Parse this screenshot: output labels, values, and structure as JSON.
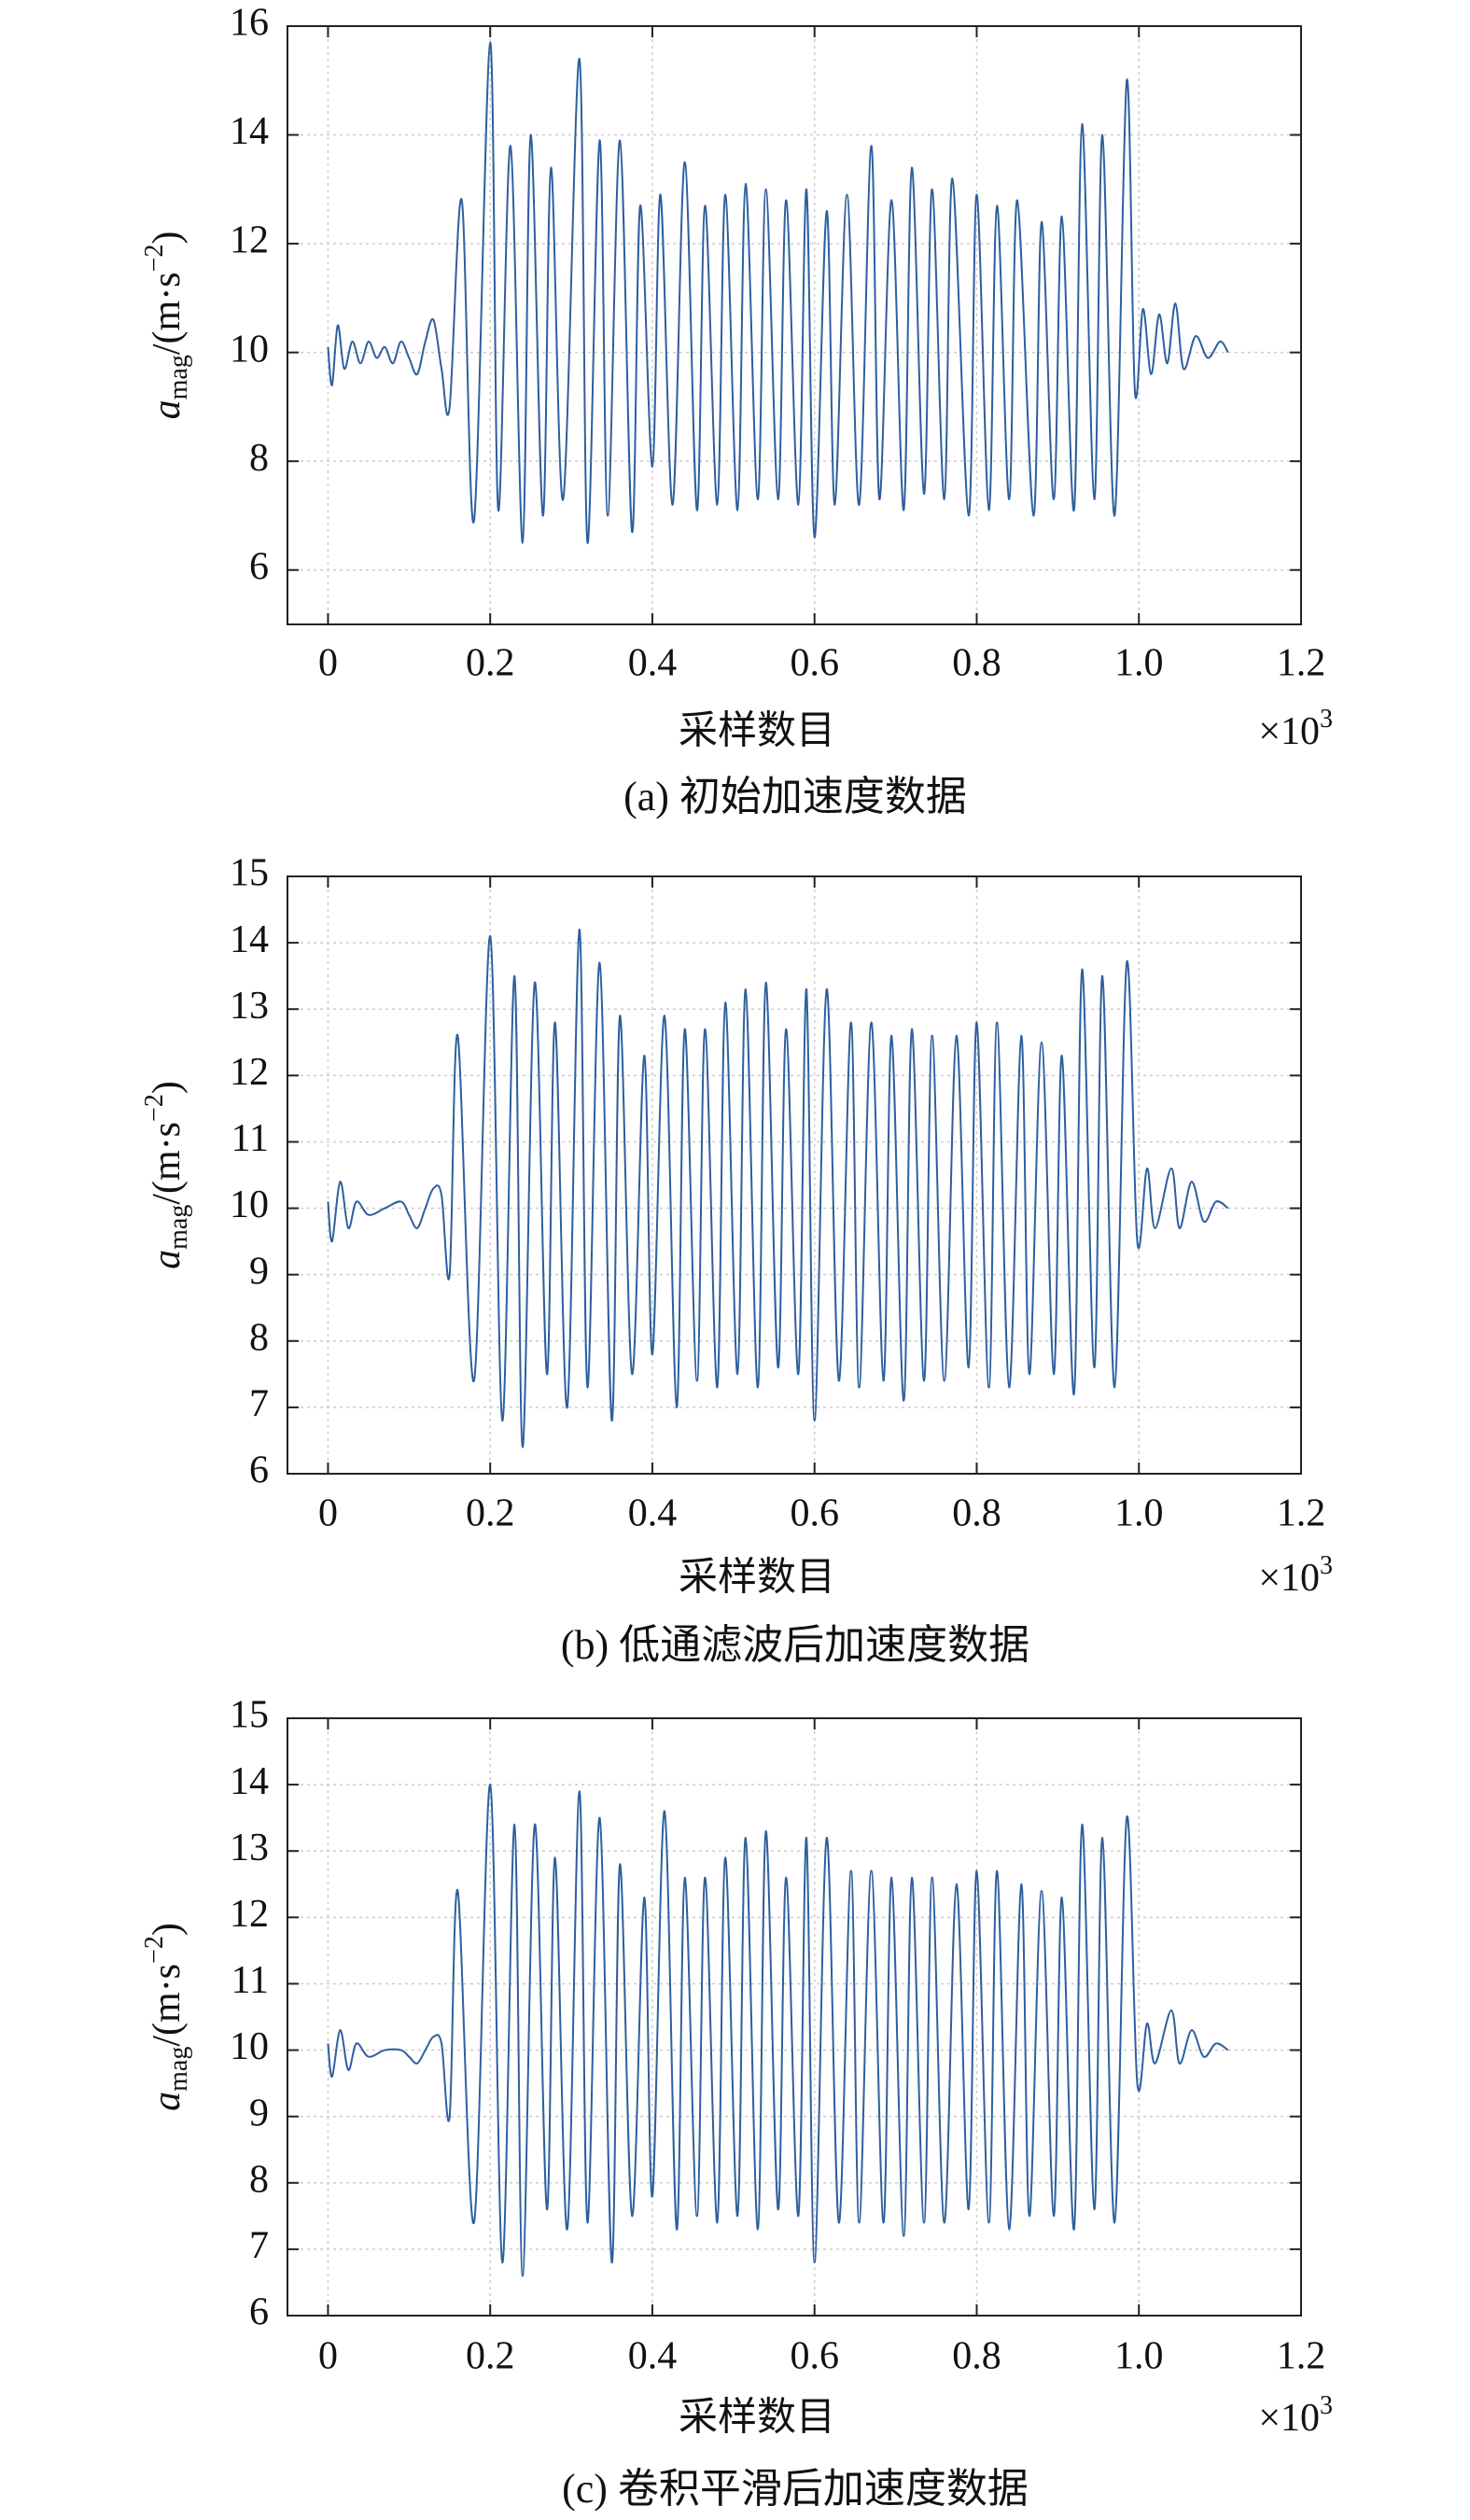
{
  "chart_data": [
    {
      "type": "line",
      "title": "(a) 初始加速度数据",
      "xlabel": "采样数目",
      "x_multiplier": [
        "×10",
        "3"
      ],
      "ylabel": [
        "a",
        "mag",
        "/(m·s",
        "−2",
        ")"
      ],
      "color": "#2e5f9e",
      "grid": true,
      "xlim": [
        -0.05,
        1.2
      ],
      "xticks": [
        0,
        0.2,
        0.4,
        0.6,
        0.8,
        {
          "value": 1,
          "label": "1.0"
        },
        1.2
      ],
      "ylim": [
        5,
        16
      ],
      "yticks": [
        6,
        8,
        10,
        12,
        14,
        16
      ],
      "x": [
        0,
        0.005,
        0.012,
        0.02,
        0.03,
        0.04,
        0.05,
        0.06,
        0.07,
        0.08,
        0.09,
        0.1,
        0.11,
        0.12,
        0.13,
        0.14,
        0.15,
        0.165,
        0.18,
        0.2,
        0.21,
        0.225,
        0.24,
        0.25,
        0.265,
        0.275,
        0.29,
        0.31,
        0.32,
        0.335,
        0.345,
        0.36,
        0.375,
        0.385,
        0.4,
        0.41,
        0.425,
        0.44,
        0.455,
        0.465,
        0.48,
        0.49,
        0.505,
        0.515,
        0.53,
        0.54,
        0.555,
        0.565,
        0.58,
        0.59,
        0.6,
        0.615,
        0.625,
        0.64,
        0.655,
        0.67,
        0.68,
        0.695,
        0.71,
        0.72,
        0.735,
        0.745,
        0.76,
        0.77,
        0.79,
        0.8,
        0.815,
        0.825,
        0.84,
        0.85,
        0.87,
        0.88,
        0.895,
        0.905,
        0.92,
        0.93,
        0.945,
        0.955,
        0.97,
        0.985,
        0.995,
        1.005,
        1.015,
        1.025,
        1.035,
        1.045,
        1.055,
        1.07,
        1.085,
        1.1,
        1.11
      ],
      "values": [
        10.1,
        9.4,
        10.5,
        9.7,
        10.2,
        9.8,
        10.2,
        9.9,
        10.1,
        9.8,
        10.2,
        9.9,
        9.6,
        10.2,
        10.6,
        9.7,
        9.0,
        12.8,
        6.9,
        15.7,
        7.1,
        13.8,
        6.5,
        14.0,
        7.0,
        13.4,
        7.3,
        15.4,
        6.5,
        13.9,
        7.0,
        13.9,
        6.7,
        12.7,
        7.9,
        12.9,
        7.2,
        13.5,
        7.1,
        12.7,
        7.2,
        12.9,
        7.1,
        13.1,
        7.3,
        13.0,
        7.3,
        12.8,
        7.2,
        13.0,
        6.6,
        12.6,
        7.2,
        12.9,
        7.2,
        13.8,
        7.3,
        12.8,
        7.1,
        13.4,
        7.4,
        13.0,
        7.3,
        13.2,
        7.0,
        12.9,
        7.1,
        12.7,
        7.3,
        12.8,
        7.0,
        12.4,
        7.3,
        12.5,
        7.1,
        14.2,
        7.3,
        14.0,
        7.0,
        15.0,
        9.3,
        10.8,
        9.6,
        10.7,
        9.8,
        10.9,
        9.7,
        10.3,
        9.9,
        10.2,
        10.0
      ]
    },
    {
      "type": "line",
      "title": "(b) 低通滤波后加速度数据",
      "xlabel": "采样数目",
      "x_multiplier": [
        "×10",
        "3"
      ],
      "ylabel": [
        "a",
        "mag",
        "/(m·s",
        "−2",
        ")"
      ],
      "color": "#2e5f9e",
      "grid": true,
      "xlim": [
        -0.05,
        1.2
      ],
      "xticks": [
        0,
        0.2,
        0.4,
        0.6,
        0.8,
        {
          "value": 1,
          "label": "1.0"
        },
        1.2
      ],
      "ylim": [
        6,
        15
      ],
      "yticks": [
        6,
        7,
        8,
        9,
        10,
        11,
        12,
        13,
        14,
        15
      ],
      "x": [
        0,
        0.005,
        0.015,
        0.025,
        0.035,
        0.05,
        0.07,
        0.09,
        0.1,
        0.11,
        0.12,
        0.13,
        0.14,
        0.15,
        0.16,
        0.18,
        0.2,
        0.215,
        0.23,
        0.24,
        0.255,
        0.27,
        0.28,
        0.295,
        0.31,
        0.32,
        0.335,
        0.35,
        0.36,
        0.375,
        0.39,
        0.4,
        0.415,
        0.43,
        0.44,
        0.455,
        0.465,
        0.48,
        0.49,
        0.505,
        0.515,
        0.53,
        0.54,
        0.555,
        0.565,
        0.58,
        0.59,
        0.6,
        0.615,
        0.63,
        0.645,
        0.655,
        0.67,
        0.685,
        0.695,
        0.71,
        0.72,
        0.735,
        0.745,
        0.76,
        0.775,
        0.79,
        0.8,
        0.815,
        0.825,
        0.84,
        0.855,
        0.865,
        0.88,
        0.895,
        0.905,
        0.92,
        0.93,
        0.945,
        0.955,
        0.97,
        0.985,
        0.998,
        1.01,
        1.02,
        1.04,
        1.05,
        1.065,
        1.08,
        1.095,
        1.11
      ],
      "values": [
        10.1,
        9.5,
        10.4,
        9.7,
        10.1,
        9.9,
        10.0,
        10.1,
        9.9,
        9.7,
        10.0,
        10.3,
        10.2,
        9.0,
        12.6,
        7.4,
        14.1,
        6.8,
        13.5,
        6.4,
        13.4,
        7.5,
        12.8,
        7.0,
        14.2,
        7.3,
        13.7,
        6.8,
        12.9,
        7.5,
        12.3,
        7.8,
        12.9,
        7.0,
        12.7,
        7.4,
        12.7,
        7.3,
        13.1,
        7.5,
        13.3,
        7.3,
        13.4,
        7.6,
        12.7,
        7.5,
        13.3,
        6.8,
        13.3,
        7.4,
        12.8,
        7.3,
        12.8,
        7.4,
        12.6,
        7.1,
        12.7,
        7.4,
        12.6,
        7.4,
        12.6,
        7.6,
        12.8,
        7.3,
        12.8,
        7.3,
        12.6,
        7.5,
        12.5,
        7.5,
        12.3,
        7.2,
        13.6,
        7.6,
        13.5,
        7.3,
        13.7,
        9.5,
        10.6,
        9.7,
        10.6,
        9.7,
        10.4,
        9.8,
        10.1,
        10.0
      ]
    },
    {
      "type": "line",
      "title": "(c) 卷积平滑后加速度数据",
      "xlabel": "采样数目",
      "x_multiplier": [
        "×10",
        "3"
      ],
      "ylabel": [
        "a",
        "mag",
        "/(m·s",
        "−2",
        ")"
      ],
      "color": "#2e5f9e",
      "grid": true,
      "xlim": [
        -0.05,
        1.2
      ],
      "xticks": [
        0,
        0.2,
        0.4,
        0.6,
        0.8,
        {
          "value": 1,
          "label": "1.0"
        },
        1.2
      ],
      "ylim": [
        6,
        15
      ],
      "yticks": [
        6,
        7,
        8,
        9,
        10,
        11,
        12,
        13,
        14,
        15
      ],
      "x": [
        0,
        0.005,
        0.015,
        0.025,
        0.035,
        0.05,
        0.07,
        0.09,
        0.1,
        0.11,
        0.12,
        0.13,
        0.14,
        0.15,
        0.16,
        0.18,
        0.2,
        0.215,
        0.23,
        0.24,
        0.255,
        0.27,
        0.28,
        0.295,
        0.31,
        0.32,
        0.335,
        0.35,
        0.36,
        0.375,
        0.39,
        0.4,
        0.415,
        0.43,
        0.44,
        0.455,
        0.465,
        0.48,
        0.49,
        0.505,
        0.515,
        0.53,
        0.54,
        0.555,
        0.565,
        0.58,
        0.59,
        0.6,
        0.615,
        0.63,
        0.645,
        0.655,
        0.67,
        0.685,
        0.695,
        0.71,
        0.72,
        0.735,
        0.745,
        0.76,
        0.775,
        0.79,
        0.8,
        0.815,
        0.825,
        0.84,
        0.855,
        0.865,
        0.88,
        0.895,
        0.905,
        0.92,
        0.93,
        0.945,
        0.955,
        0.97,
        0.985,
        0.998,
        1.01,
        1.02,
        1.04,
        1.05,
        1.065,
        1.08,
        1.095,
        1.11
      ],
      "values": [
        10.1,
        9.6,
        10.3,
        9.7,
        10.1,
        9.9,
        10.0,
        10.0,
        9.9,
        9.8,
        10.0,
        10.2,
        10.1,
        9.0,
        12.4,
        7.4,
        14.0,
        6.8,
        13.4,
        6.6,
        13.4,
        7.6,
        12.9,
        7.3,
        13.9,
        7.4,
        13.5,
        6.8,
        12.8,
        7.5,
        12.3,
        7.8,
        13.6,
        7.3,
        12.6,
        7.5,
        12.6,
        7.4,
        12.9,
        7.5,
        13.2,
        7.3,
        13.3,
        7.6,
        12.6,
        7.5,
        13.2,
        6.8,
        13.2,
        7.4,
        12.7,
        7.4,
        12.7,
        7.4,
        12.6,
        7.2,
        12.6,
        7.4,
        12.6,
        7.4,
        12.5,
        7.6,
        12.7,
        7.4,
        12.7,
        7.3,
        12.5,
        7.5,
        12.4,
        7.5,
        12.3,
        7.3,
        13.4,
        7.6,
        13.2,
        7.4,
        13.5,
        9.5,
        10.4,
        9.8,
        10.6,
        9.8,
        10.3,
        9.9,
        10.1,
        10.0
      ]
    }
  ]
}
